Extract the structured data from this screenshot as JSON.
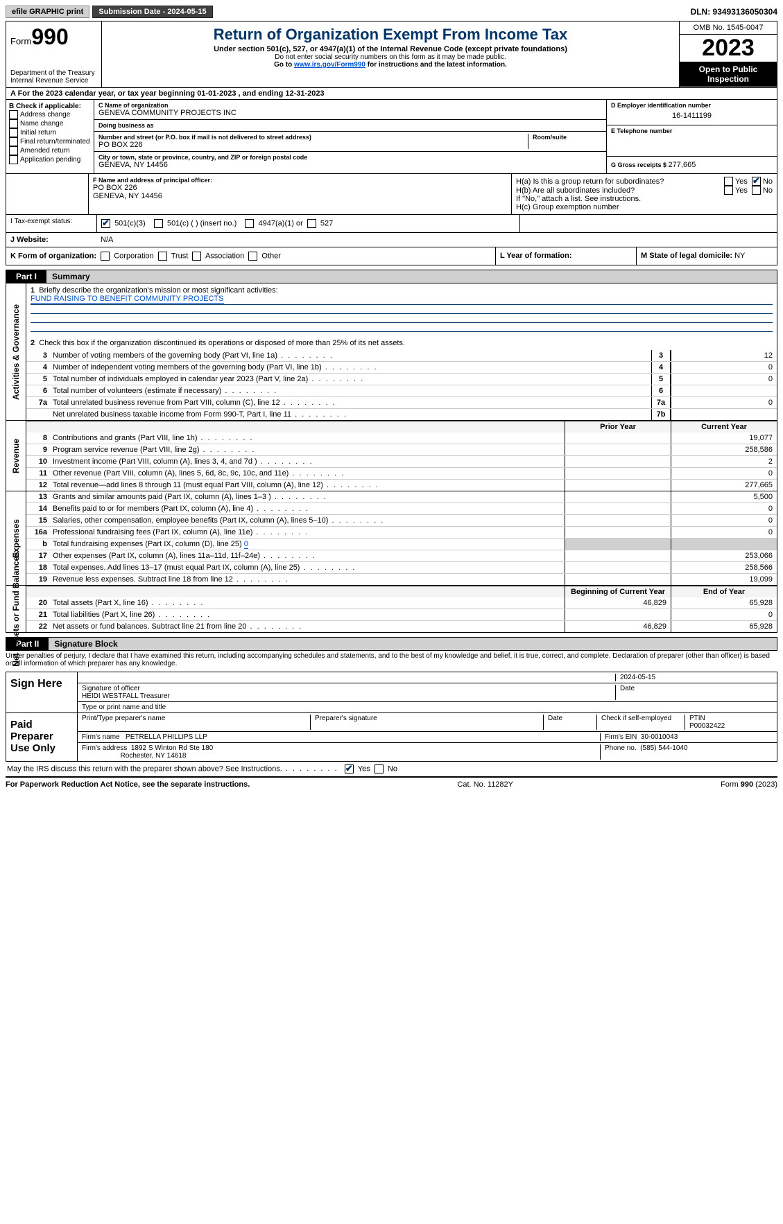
{
  "topbar": {
    "efile": "efile GRAPHIC print",
    "submission_label": "Submission Date - 2024-05-15",
    "dln_label": "DLN: 93493136050304"
  },
  "header": {
    "form_word": "Form",
    "form_num": "990",
    "dept": "Department of the Treasury",
    "irs": "Internal Revenue Service",
    "title": "Return of Organization Exempt From Income Tax",
    "sub1": "Under section 501(c), 527, or 4947(a)(1) of the Internal Revenue Code (except private foundations)",
    "sub2": "Do not enter social security numbers on this form as it may be made public.",
    "sub3_pre": "Go to ",
    "sub3_link": "www.irs.gov/Form990",
    "sub3_post": " for instructions and the latest information.",
    "omb": "OMB No. 1545-0047",
    "year": "2023",
    "open": "Open to Public Inspection"
  },
  "row_a": "A For the 2023 calendar year, or tax year beginning 01-01-2023   , and ending 12-31-2023",
  "box_b": {
    "title": "B Check if applicable:",
    "items": [
      "Address change",
      "Name change",
      "Initial return",
      "Final return/terminated",
      "Amended return",
      "Application pending"
    ]
  },
  "box_c": {
    "name_label": "C Name of organization",
    "name": "GENEVA COMMUNITY PROJECTS INC",
    "dba_label": "Doing business as",
    "dba": "",
    "street_label": "Number and street (or P.O. box if mail is not delivered to street address)",
    "room_label": "Room/suite",
    "street": "PO BOX 226",
    "city_label": "City or town, state or province, country, and ZIP or foreign postal code",
    "city": "GENEVA, NY  14456"
  },
  "box_d": {
    "label": "D Employer identification number",
    "val": "16-1411199"
  },
  "box_e": {
    "label": "E Telephone number",
    "val": ""
  },
  "box_g": {
    "label": "G Gross receipts $ ",
    "val": "277,665"
  },
  "box_f": {
    "label": "F  Name and address of principal officer:",
    "line1": "",
    "line2": "PO BOX 226",
    "line3": "GENEVA, NY  14456"
  },
  "box_h": {
    "a_label": "H(a)  Is this a group return for subordinates?",
    "b_label": "H(b)  Are all subordinates included?",
    "b_note": "If \"No,\" attach a list. See instructions.",
    "c_label": "H(c)  Group exemption number",
    "yes": "Yes",
    "no": "No"
  },
  "row_i": {
    "label": "I   Tax-exempt status:",
    "o1": "501(c)(3)",
    "o2": "501(c) (  ) (insert no.)",
    "o3": "4947(a)(1) or",
    "o4": "527"
  },
  "row_j": {
    "label": "J   Website:",
    "val": "N/A"
  },
  "row_k": {
    "label": "K Form of organization:",
    "opts": [
      "Corporation",
      "Trust",
      "Association",
      "Other"
    ]
  },
  "row_l": {
    "label": "L Year of formation:",
    "val": ""
  },
  "row_m": {
    "label": "M State of legal domicile: ",
    "val": "NY"
  },
  "part1": {
    "num": "Part I",
    "title": "Summary"
  },
  "block1": {
    "side": "Activities & Governance",
    "l1_label": "Briefly describe the organization's mission or most significant activities:",
    "l1_val": "FUND RAISING TO BENEFIT COMMUNITY PROJECTS",
    "l2": "Check this box       if the organization discontinued its operations or disposed of more than 25% of its net assets.",
    "rows": [
      {
        "n": "3",
        "d": "Number of voting members of the governing body (Part VI, line 1a)",
        "box": "3",
        "v": "12"
      },
      {
        "n": "4",
        "d": "Number of independent voting members of the governing body (Part VI, line 1b)",
        "box": "4",
        "v": "0"
      },
      {
        "n": "5",
        "d": "Total number of individuals employed in calendar year 2023 (Part V, line 2a)",
        "box": "5",
        "v": "0"
      },
      {
        "n": "6",
        "d": "Total number of volunteers (estimate if necessary)",
        "box": "6",
        "v": ""
      },
      {
        "n": "7a",
        "d": "Total unrelated business revenue from Part VIII, column (C), line 12",
        "box": "7a",
        "v": "0"
      },
      {
        "n": "",
        "d": "Net unrelated business taxable income from Form 990-T, Part I, line 11",
        "box": "7b",
        "v": ""
      }
    ]
  },
  "block2": {
    "side": "Revenue",
    "hdr_prior": "Prior Year",
    "hdr_curr": "Current Year",
    "rows": [
      {
        "n": "8",
        "d": "Contributions and grants (Part VIII, line 1h)",
        "p": "",
        "c": "19,077"
      },
      {
        "n": "9",
        "d": "Program service revenue (Part VIII, line 2g)",
        "p": "",
        "c": "258,586"
      },
      {
        "n": "10",
        "d": "Investment income (Part VIII, column (A), lines 3, 4, and 7d )",
        "p": "",
        "c": "2"
      },
      {
        "n": "11",
        "d": "Other revenue (Part VIII, column (A), lines 5, 6d, 8c, 9c, 10c, and 11e)",
        "p": "",
        "c": "0"
      },
      {
        "n": "12",
        "d": "Total revenue—add lines 8 through 11 (must equal Part VIII, column (A), line 12)",
        "p": "",
        "c": "277,665"
      }
    ]
  },
  "block3": {
    "side": "Expenses",
    "rows": [
      {
        "n": "13",
        "d": "Grants and similar amounts paid (Part IX, column (A), lines 1–3 )",
        "p": "",
        "c": "5,500"
      },
      {
        "n": "14",
        "d": "Benefits paid to or for members (Part IX, column (A), line 4)",
        "p": "",
        "c": "0"
      },
      {
        "n": "15",
        "d": "Salaries, other compensation, employee benefits (Part IX, column (A), lines 5–10)",
        "p": "",
        "c": "0"
      },
      {
        "n": "16a",
        "d": "Professional fundraising fees (Part IX, column (A), line 11e)",
        "p": "",
        "c": "0"
      },
      {
        "n": "b",
        "d": "Total fundraising expenses (Part IX, column (D), line 25) ",
        "p": "gray",
        "c": "gray",
        "inline": "0"
      },
      {
        "n": "17",
        "d": "Other expenses (Part IX, column (A), lines 11a–11d, 11f–24e)",
        "p": "",
        "c": "253,066"
      },
      {
        "n": "18",
        "d": "Total expenses. Add lines 13–17 (must equal Part IX, column (A), line 25)",
        "p": "",
        "c": "258,566"
      },
      {
        "n": "19",
        "d": "Revenue less expenses. Subtract line 18 from line 12",
        "p": "",
        "c": "19,099"
      }
    ]
  },
  "block4": {
    "side": "Net Assets or Fund Balances",
    "hdr_prior": "Beginning of Current Year",
    "hdr_curr": "End of Year",
    "rows": [
      {
        "n": "20",
        "d": "Total assets (Part X, line 16)",
        "p": "46,829",
        "c": "65,928"
      },
      {
        "n": "21",
        "d": "Total liabilities (Part X, line 26)",
        "p": "",
        "c": "0"
      },
      {
        "n": "22",
        "d": "Net assets or fund balances. Subtract line 21 from line 20",
        "p": "46,829",
        "c": "65,928"
      }
    ]
  },
  "part2": {
    "num": "Part II",
    "title": "Signature Block"
  },
  "penalties": "Under penalties of perjury, I declare that I have examined this return, including accompanying schedules and statements, and to the best of my knowledge and belief, it is true, correct, and complete. Declaration of preparer (other than officer) is based on all information of which preparer has any knowledge.",
  "sign": {
    "label": "Sign Here",
    "date": "2024-05-15",
    "sig_label": "Signature of officer",
    "name": "HEIDI WESTFALL Treasurer",
    "type_label": "Type or print name and title",
    "date_label": "Date"
  },
  "preparer": {
    "label": "Paid Preparer Use Only",
    "c1": "Print/Type preparer's name",
    "c2": "Preparer's signature",
    "c3": "Date",
    "c4": "Check        if self-employed",
    "c5_label": "PTIN",
    "c5": "P00032422",
    "firm_label": "Firm's name",
    "firm": "PETRELLA PHILLIPS LLP",
    "ein_label": "Firm's EIN",
    "ein": "30-0010043",
    "addr_label": "Firm's address",
    "addr1": "1892 S Winton Rd Ste 180",
    "addr2": "Rochester, NY  14618",
    "phone_label": "Phone no.",
    "phone": "(585) 544-1040"
  },
  "discuss": {
    "q": "May the IRS discuss this return with the preparer shown above? See Instructions.",
    "yes": "Yes",
    "no": "No"
  },
  "footer": {
    "left": "For Paperwork Reduction Act Notice, see the separate instructions.",
    "mid": "Cat. No. 11282Y",
    "right_pre": "Form ",
    "right_form": "990",
    "right_post": " (2023)"
  }
}
